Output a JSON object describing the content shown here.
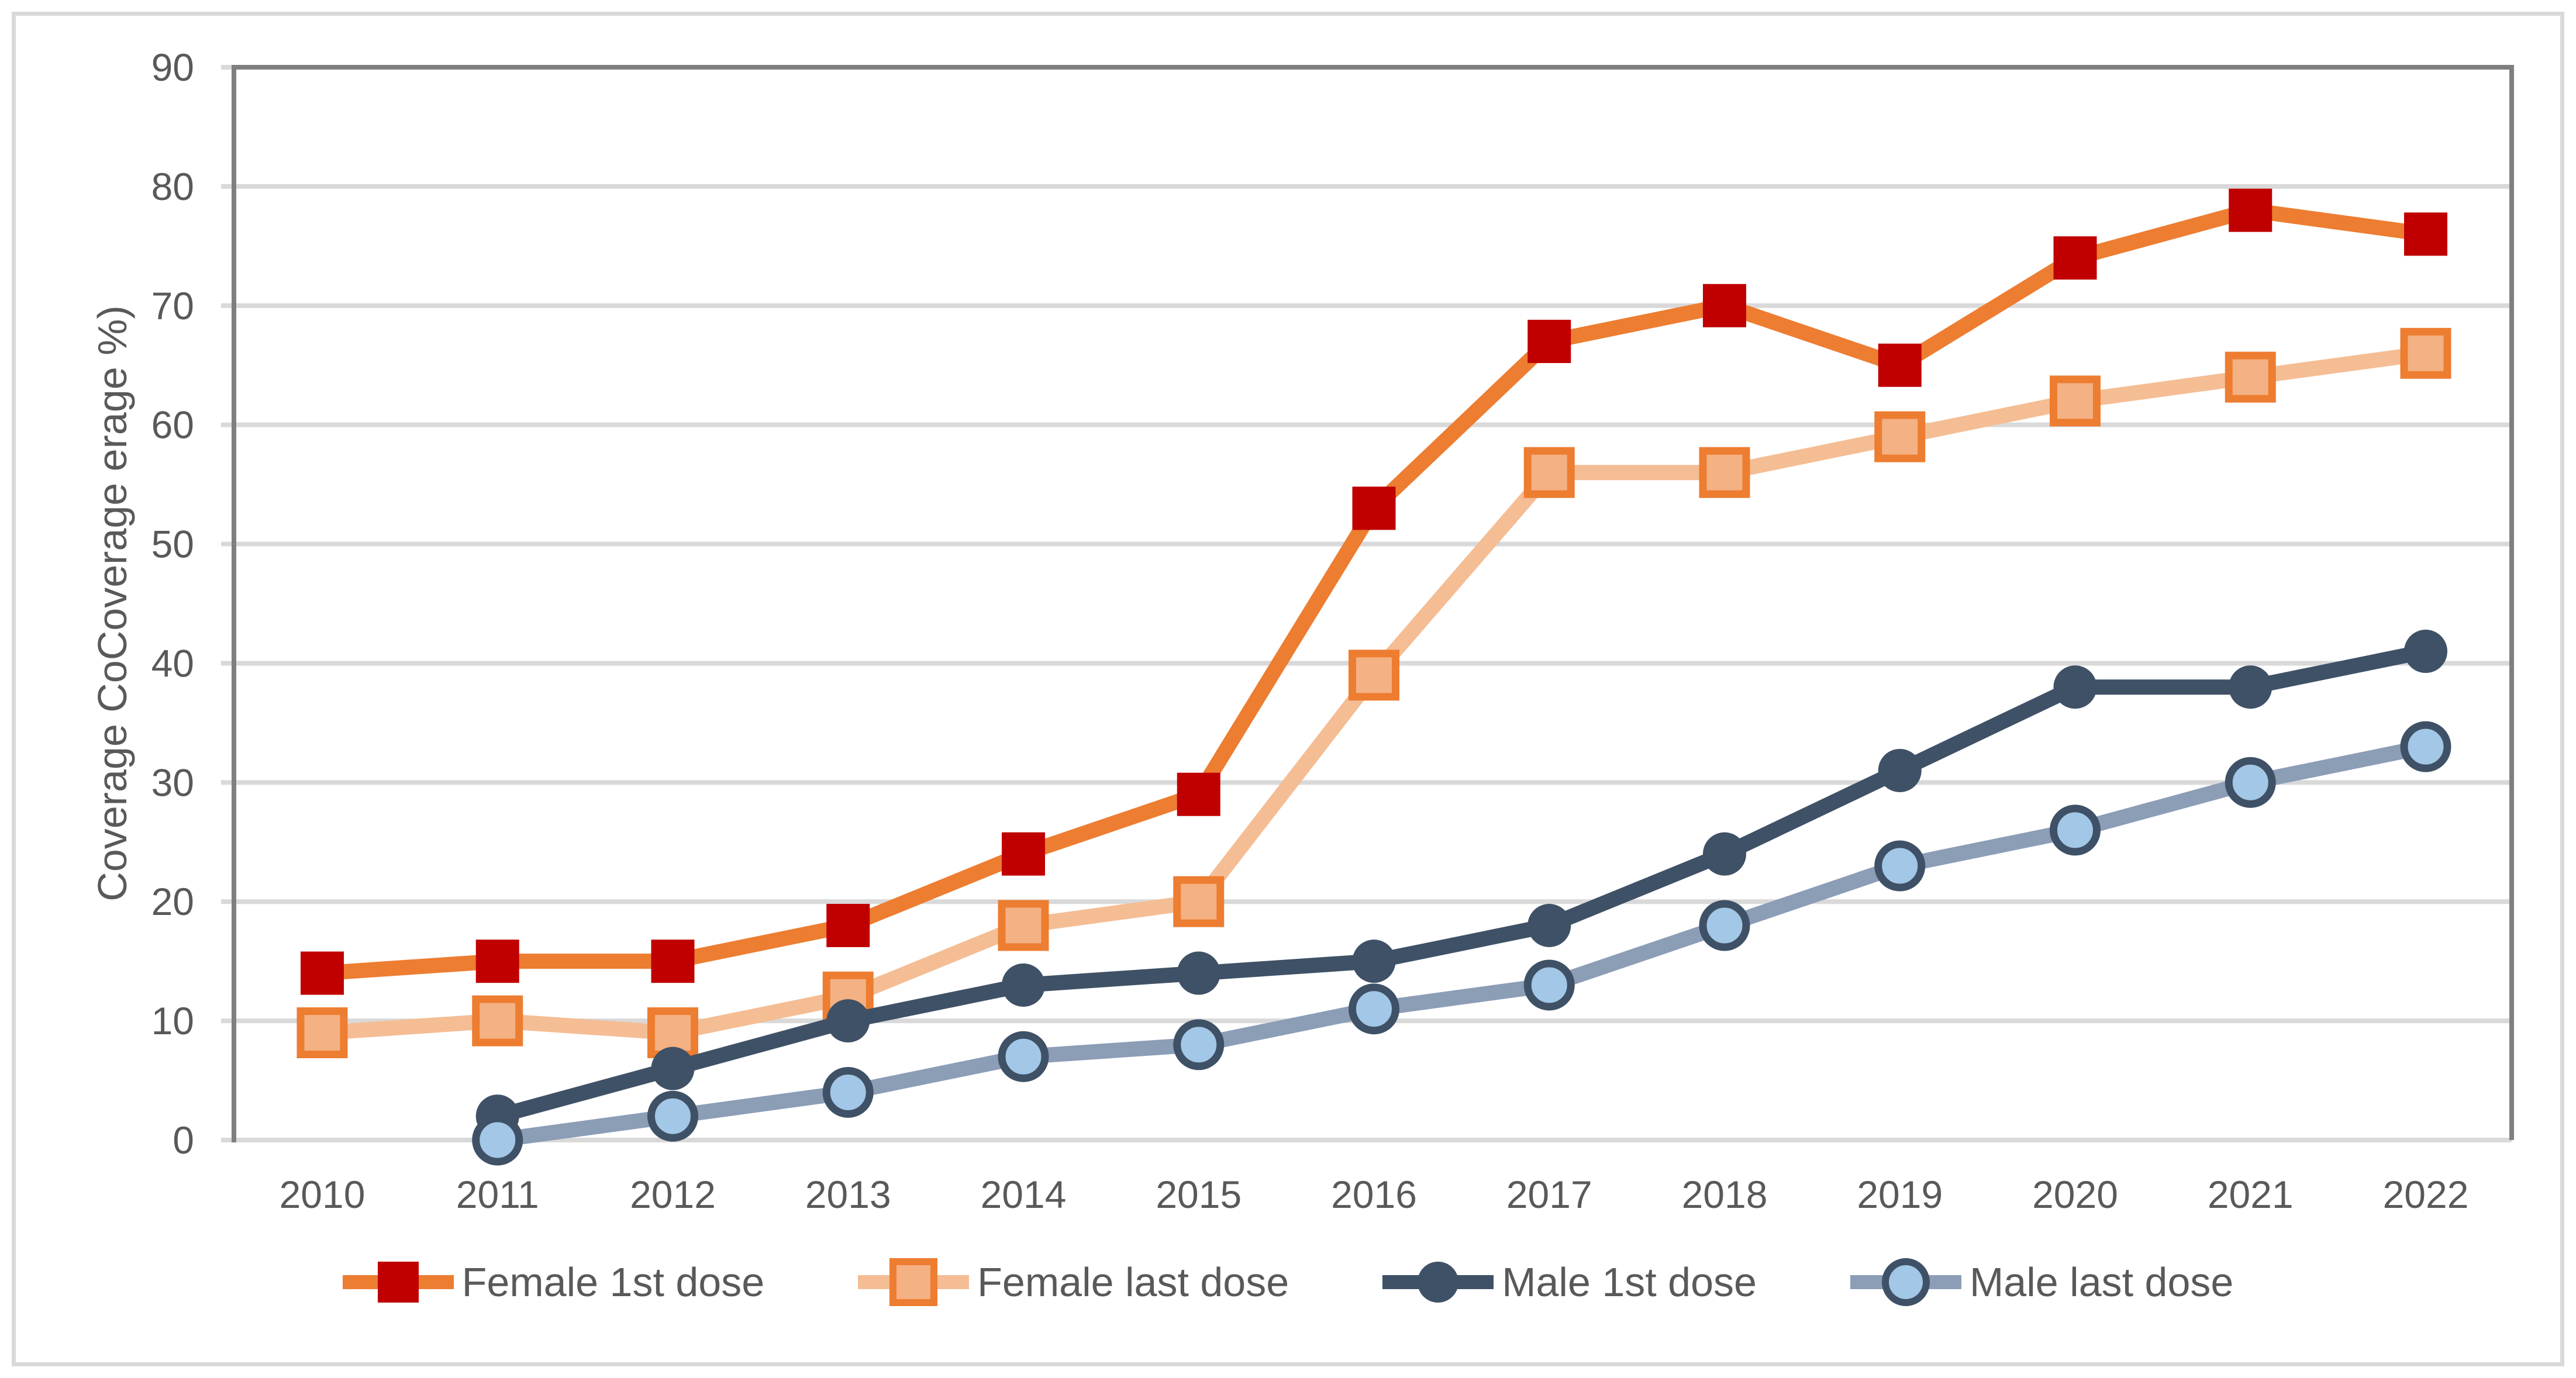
{
  "chart_data": {
    "type": "line",
    "title": "",
    "xlabel": "",
    "ylabel": "Coverage CoCoverage erage %)",
    "categories": [
      "2010",
      "2011",
      "2012",
      "2013",
      "2014",
      "2015",
      "2016",
      "2017",
      "2018",
      "2019",
      "2020",
      "2021",
      "2022"
    ],
    "ylim": [
      0,
      90
    ],
    "yticks": [
      0,
      10,
      20,
      30,
      40,
      50,
      60,
      70,
      80,
      90
    ],
    "grid": true,
    "legend_position": "bottom",
    "series": [
      {
        "name": "Female 1st dose",
        "marker": "square",
        "line_color": "#ED7D31",
        "marker_fill": "#C00000",
        "marker_border": "none",
        "values": [
          14,
          15,
          15,
          18,
          24,
          29,
          53,
          67,
          70,
          65,
          74,
          78,
          76
        ]
      },
      {
        "name": "Female last dose",
        "marker": "square",
        "line_color": "#F5BD94",
        "marker_fill": "#F4B183",
        "marker_border": "#ED7D31",
        "values": [
          9,
          10,
          9,
          12,
          18,
          20,
          39,
          56,
          56,
          59,
          62,
          64,
          66
        ]
      },
      {
        "name": "Male 1st dose",
        "marker": "circle",
        "line_color": "#3F5166",
        "marker_fill": "#3F5166",
        "marker_border": "none",
        "values": [
          null,
          2,
          6,
          10,
          13,
          14,
          15,
          18,
          24,
          31,
          38,
          38,
          41
        ]
      },
      {
        "name": "Male last dose",
        "marker": "circle",
        "line_color": "#8C9DB6",
        "marker_fill": "#A3C7E6",
        "marker_border": "#3F5166",
        "values": [
          null,
          0,
          2,
          4,
          7,
          8,
          11,
          13,
          18,
          23,
          26,
          30,
          33
        ]
      }
    ]
  },
  "colors": {
    "background": "#FFFFFF",
    "plot_border_dark": "#7F7F7F",
    "gridline": "#D9D9D9",
    "tick": "#D9D9D9",
    "text": "#595959",
    "outer_border": "#D9D9D9"
  }
}
